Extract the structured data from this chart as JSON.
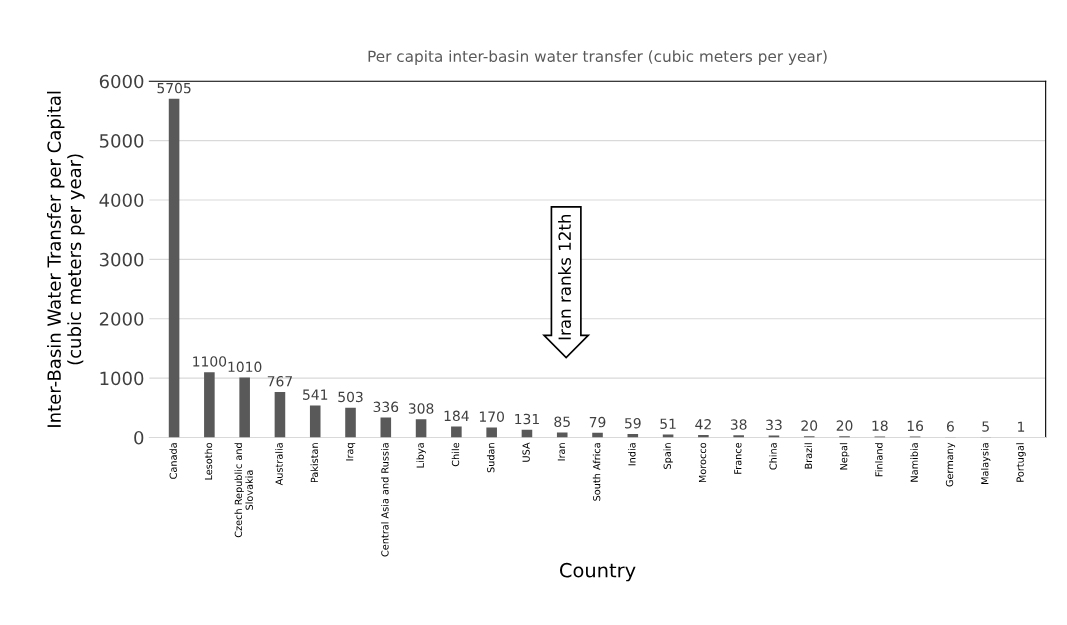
{
  "chart_data": {
    "type": "bar",
    "title": "Per capita inter-basin water transfer (cubic meters per year)",
    "xlabel": "Country",
    "ylabel": "Inter-Basin Water Transfer per Capital\n(cubic meters per year)",
    "categories": [
      "Canada",
      "Lesotho",
      "Czech Republic and\nSlovakia",
      "Australia",
      "Pakistan",
      "Iraq",
      "Central Asia and Russia",
      "Libya",
      "Chile",
      "Sudan",
      "USA",
      "Iran",
      "South Africa",
      "India",
      "Spain",
      "Morocco",
      "France",
      "China",
      "Brazil",
      "Nepal",
      "Finland",
      "Namibia",
      "Germany",
      "Malaysia",
      "Portugal"
    ],
    "values": [
      5705,
      1100,
      1010,
      767,
      541,
      503,
      336,
      308,
      184,
      170,
      131,
      85,
      79,
      59,
      51,
      42,
      38,
      33,
      20,
      20,
      18,
      16,
      6,
      5,
      1
    ],
    "color": "#595959",
    "data_labels": true,
    "ylim": [
      0,
      6000
    ],
    "yticks": [
      0,
      1000,
      2000,
      3000,
      4000,
      5000,
      6000
    ],
    "grid": "y",
    "annotations": [
      "Iran ranks 12th"
    ]
  }
}
